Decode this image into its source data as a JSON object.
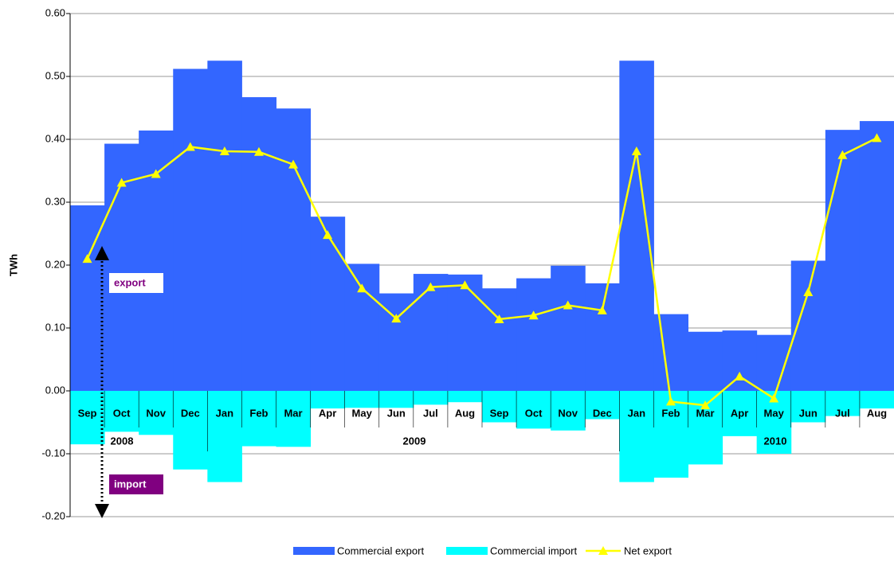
{
  "chart_data": {
    "type": "bar",
    "y_label": "TWh",
    "categories": [
      "Sep",
      "Oct",
      "Nov",
      "Dec",
      "Jan",
      "Feb",
      "Mar",
      "Apr",
      "May",
      "Jun",
      "Jul",
      "Aug",
      "Sep",
      "Oct",
      "Nov",
      "Dec",
      "Jan",
      "Feb",
      "Mar",
      "Apr",
      "May",
      "Jun",
      "Jul",
      "Aug"
    ],
    "year_labels": [
      "2008",
      "2009",
      "2010"
    ],
    "series": [
      {
        "name": "Commercial export",
        "type": "bar",
        "color": "#3366ff",
        "values": [
          0.295,
          0.393,
          0.414,
          0.512,
          0.525,
          0.467,
          0.449,
          0.277,
          0.202,
          0.155,
          0.186,
          0.185,
          0.163,
          0.179,
          0.199,
          0.171,
          0.525,
          0.122,
          0.094,
          0.096,
          0.089,
          0.207,
          0.415,
          0.429
        ]
      },
      {
        "name": "Commercial import",
        "type": "bar",
        "color": "#00ffff",
        "values": [
          -0.085,
          -0.065,
          -0.07,
          -0.125,
          -0.145,
          -0.088,
          -0.089,
          -0.028,
          -0.027,
          -0.027,
          -0.022,
          -0.018,
          -0.05,
          -0.06,
          -0.063,
          -0.045,
          -0.145,
          -0.138,
          -0.117,
          -0.072,
          -0.1,
          -0.05,
          -0.04,
          -0.028
        ]
      },
      {
        "name": "Net export",
        "type": "line",
        "color": "#ffff00",
        "values": [
          0.21,
          0.331,
          0.345,
          0.388,
          0.381,
          0.38,
          0.36,
          0.248,
          0.163,
          0.115,
          0.165,
          0.168,
          0.114,
          0.12,
          0.136,
          0.128,
          0.381,
          -0.017,
          -0.023,
          0.023,
          -0.012,
          0.157,
          0.375,
          0.402
        ]
      }
    ],
    "annotations": [
      "export",
      "import"
    ],
    "ylim": [
      -0.2,
      0.6
    ],
    "yticks": [
      {
        "value": -0.2,
        "label": "-0.20"
      },
      {
        "value": -0.1,
        "label": "-0.10"
      },
      {
        "value": 0,
        "label": "0.00"
      },
      {
        "value": 0.1,
        "label": "0.10"
      },
      {
        "value": 0.2,
        "label": "0.20"
      },
      {
        "value": 0.3,
        "label": "0.30"
      },
      {
        "value": 0.4,
        "label": "0.40"
      },
      {
        "value": 0.5,
        "label": "0.50"
      },
      {
        "value": 0.6,
        "label": "0.60"
      }
    ],
    "grid": true
  }
}
